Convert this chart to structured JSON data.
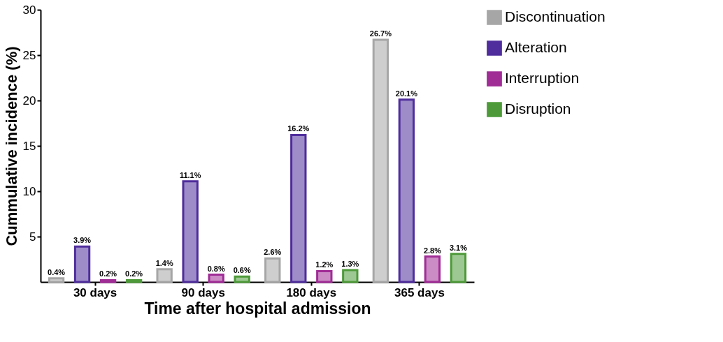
{
  "chart_data": {
    "type": "bar",
    "xlabel": "Time after hospital admission",
    "ylabel": "Cummulative incidence (%)",
    "categories": [
      "30 days",
      "90 days",
      "180 days",
      "365 days"
    ],
    "series": [
      {
        "name": "Discontinuation",
        "color": "#a6a6a6",
        "values": [
          0.4,
          1.4,
          2.6,
          26.7
        ],
        "value_labels": [
          "0.4%",
          "1.4%",
          "2.6%",
          "26.7%"
        ]
      },
      {
        "name": "Alteration",
        "color": "#4f2d9c",
        "values": [
          3.9,
          11.1,
          16.2,
          20.1
        ],
        "value_labels": [
          "3.9%",
          "11.1%",
          "16.2%",
          "20.1%"
        ]
      },
      {
        "name": "Interruption",
        "color": "#a02c96",
        "values": [
          0.2,
          0.8,
          1.2,
          2.8
        ],
        "value_labels": [
          "0.2%",
          "0.8%",
          "1.2%",
          "2.8%"
        ]
      },
      {
        "name": "Disruption",
        "color": "#4e9a3a",
        "values": [
          0.2,
          0.6,
          1.3,
          3.1
        ],
        "value_labels": [
          "0.2%",
          "0.6%",
          "1.3%",
          "3.1%"
        ]
      }
    ],
    "ylim": [
      0,
      30
    ],
    "yticks": [
      5,
      10,
      15,
      20,
      25,
      30
    ],
    "grid": false,
    "legend": "right"
  }
}
